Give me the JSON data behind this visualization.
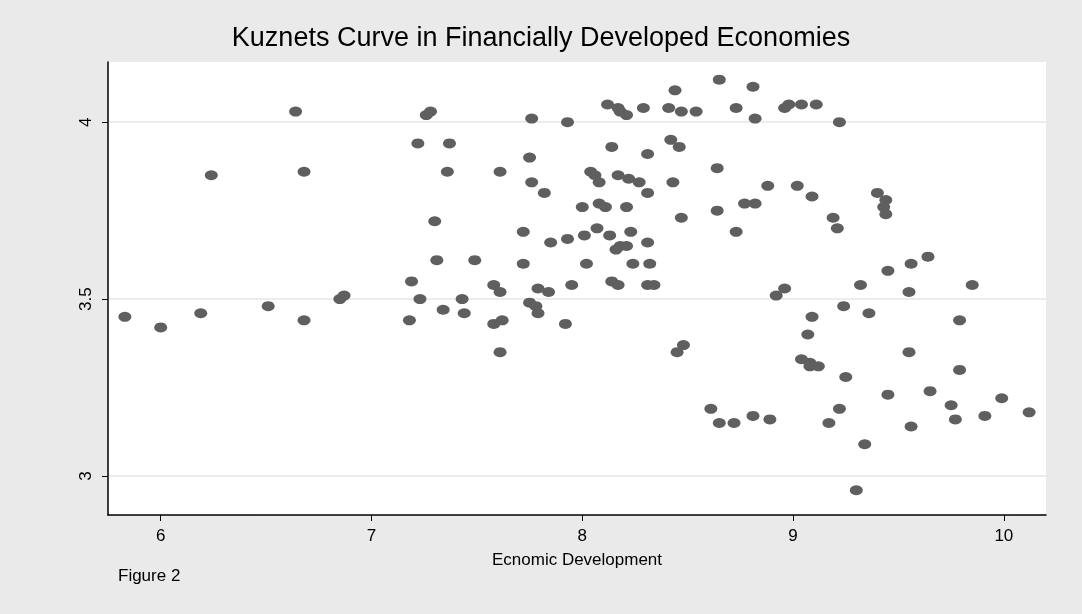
{
  "chart_data": {
    "type": "scatter",
    "title": "Kuznets Curve in Financially Developed Economies",
    "xlabel": "Ecnomic Development",
    "annotations": [
      "Figure 2"
    ],
    "xlim": [
      5.75,
      10.2
    ],
    "xticks": [
      6,
      7,
      8,
      9,
      10
    ],
    "ylim": [
      2.89,
      4.17
    ],
    "yticks": [
      3,
      3.5,
      4
    ],
    "grid": "y",
    "marker": "circle",
    "series": [
      {
        "color": "#5f5f5f",
        "x": [
          5.83,
          6.0,
          6.19,
          6.51,
          6.68,
          6.24,
          6.64,
          6.68,
          6.85,
          6.87,
          7.26,
          7.28,
          7.22,
          7.37,
          7.36,
          7.3,
          7.31,
          7.19,
          7.23,
          7.18,
          7.34,
          7.43,
          7.44,
          8.65,
          8.44,
          8.12,
          8.17,
          8.18,
          8.21,
          8.29,
          8.41,
          8.47,
          8.54,
          7.76,
          7.93,
          8.14,
          8.42,
          8.46,
          8.31,
          7.75,
          7.61,
          7.76,
          7.82,
          8.04,
          8.06,
          8.08,
          8.17,
          8.22,
          8.27,
          8.31,
          8.43,
          8.64,
          8.0,
          8.08,
          8.11,
          8.21,
          8.47,
          8.64,
          7.72,
          7.85,
          7.93,
          8.01,
          8.07,
          8.13,
          8.23,
          8.31,
          8.16,
          8.18,
          8.21,
          7.49,
          7.72,
          8.02,
          8.24,
          8.32,
          7.58,
          7.61,
          7.79,
          7.84,
          7.95,
          8.14,
          8.17,
          8.31,
          8.34,
          7.75,
          7.78,
          7.79,
          7.58,
          7.62,
          7.92,
          7.61,
          8.45,
          8.48,
          8.61,
          8.81,
          8.73,
          8.82,
          8.96,
          8.98,
          9.04,
          9.11,
          9.22,
          8.88,
          9.02,
          9.09,
          9.4,
          9.44,
          9.43,
          9.44,
          8.77,
          8.82,
          8.73,
          9.19,
          9.21,
          9.64,
          9.56,
          9.45,
          9.32,
          9.85,
          8.96,
          8.92,
          9.55,
          9.24,
          9.36,
          9.09,
          9.79,
          9.07,
          9.55,
          9.04,
          9.08,
          9.08,
          9.12,
          9.25,
          9.79,
          9.45,
          9.65,
          9.75,
          9.99,
          9.22,
          8.81,
          8.65,
          8.72,
          8.89,
          9.17,
          9.56,
          9.77,
          9.91,
          10.12,
          9.34,
          9.3
        ],
        "values": [
          3.45,
          3.42,
          3.46,
          3.48,
          3.44,
          3.85,
          4.03,
          3.86,
          3.5,
          3.51,
          4.02,
          4.03,
          3.94,
          3.94,
          3.86,
          3.72,
          3.61,
          3.55,
          3.5,
          3.44,
          3.47,
          3.5,
          3.46,
          4.12,
          4.09,
          4.05,
          4.04,
          4.03,
          4.02,
          4.04,
          4.04,
          4.03,
          4.03,
          4.01,
          4.0,
          3.93,
          3.95,
          3.93,
          3.91,
          3.9,
          3.86,
          3.83,
          3.8,
          3.86,
          3.85,
          3.83,
          3.85,
          3.84,
          3.83,
          3.8,
          3.83,
          3.87,
          3.76,
          3.77,
          3.76,
          3.76,
          3.73,
          3.75,
          3.69,
          3.66,
          3.67,
          3.68,
          3.7,
          3.68,
          3.69,
          3.66,
          3.64,
          3.65,
          3.65,
          3.61,
          3.6,
          3.6,
          3.6,
          3.6,
          3.54,
          3.52,
          3.53,
          3.52,
          3.54,
          3.55,
          3.54,
          3.54,
          3.54,
          3.49,
          3.48,
          3.46,
          3.43,
          3.44,
          3.43,
          3.35,
          3.35,
          3.37,
          3.19,
          4.1,
          4.04,
          4.01,
          4.04,
          4.05,
          4.05,
          4.05,
          4.0,
          3.82,
          3.82,
          3.79,
          3.8,
          3.78,
          3.76,
          3.74,
          3.77,
          3.77,
          3.69,
          3.73,
          3.7,
          3.62,
          3.6,
          3.58,
          3.54,
          3.54,
          3.53,
          3.51,
          3.52,
          3.48,
          3.46,
          3.45,
          3.44,
          3.4,
          3.35,
          3.33,
          3.32,
          3.31,
          3.31,
          3.28,
          3.3,
          3.23,
          3.24,
          3.2,
          3.22,
          3.19,
          3.17,
          3.15,
          3.15,
          3.16,
          3.15,
          3.14,
          3.16,
          3.17,
          3.18,
          3.09,
          2.96
        ]
      }
    ]
  }
}
